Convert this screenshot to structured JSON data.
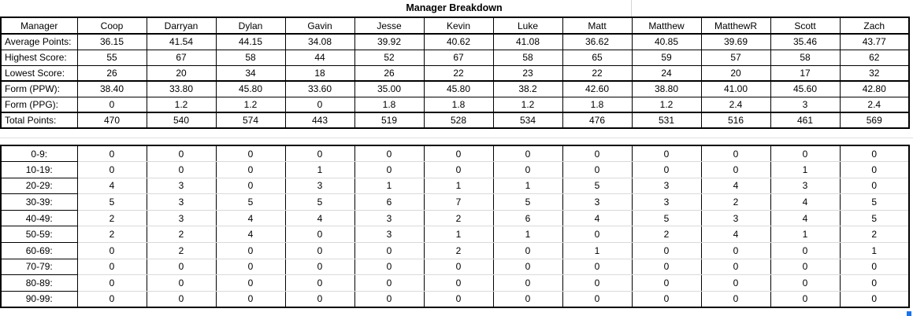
{
  "title": "Manager Breakdown",
  "managers": [
    "Coop",
    "Darryan",
    "Dylan",
    "Gavin",
    "Jesse",
    "Kevin",
    "Luke",
    "Matt",
    "Matthew",
    "MatthewR",
    "Scott",
    "Zach"
  ],
  "summary_table": {
    "header_label": "Manager",
    "rows": [
      {
        "label": "Average Points:",
        "values": [
          "36.15",
          "41.54",
          "44.15",
          "34.08",
          "39.92",
          "40.62",
          "41.08",
          "36.62",
          "40.85",
          "39.69",
          "35.46",
          "43.77"
        ]
      },
      {
        "label": "Highest Score:",
        "values": [
          "55",
          "67",
          "58",
          "44",
          "52",
          "67",
          "58",
          "65",
          "59",
          "57",
          "58",
          "62"
        ]
      },
      {
        "label": "Lowest Score:",
        "values": [
          "26",
          "20",
          "34",
          "18",
          "26",
          "22",
          "23",
          "22",
          "24",
          "20",
          "17",
          "32"
        ]
      },
      {
        "label": "Form (PPW):",
        "values": [
          "38.40",
          "33.80",
          "45.80",
          "33.60",
          "35.00",
          "45.80",
          "38.2",
          "42.60",
          "38.80",
          "41.00",
          "45.60",
          "42.80"
        ]
      },
      {
        "label": "Form (PPG):",
        "values": [
          "0",
          "1.2",
          "1.2",
          "0",
          "1.8",
          "1.8",
          "1.2",
          "1.8",
          "1.2",
          "2.4",
          "3",
          "2.4"
        ]
      },
      {
        "label": "Total Points:",
        "values": [
          "470",
          "540",
          "574",
          "443",
          "519",
          "528",
          "534",
          "476",
          "531",
          "516",
          "461",
          "569"
        ]
      }
    ]
  },
  "distribution_table": {
    "rows": [
      {
        "label": "0-9:",
        "values": [
          "0",
          "0",
          "0",
          "0",
          "0",
          "0",
          "0",
          "0",
          "0",
          "0",
          "0",
          "0"
        ]
      },
      {
        "label": "10-19:",
        "values": [
          "0",
          "0",
          "0",
          "1",
          "0",
          "0",
          "0",
          "0",
          "0",
          "0",
          "1",
          "0"
        ]
      },
      {
        "label": "20-29:",
        "values": [
          "4",
          "3",
          "0",
          "3",
          "1",
          "1",
          "1",
          "5",
          "3",
          "4",
          "3",
          "0"
        ]
      },
      {
        "label": "30-39:",
        "values": [
          "5",
          "3",
          "5",
          "5",
          "6",
          "7",
          "5",
          "3",
          "3",
          "2",
          "4",
          "5"
        ]
      },
      {
        "label": "40-49:",
        "values": [
          "2",
          "3",
          "4",
          "4",
          "3",
          "2",
          "6",
          "4",
          "5",
          "3",
          "4",
          "5"
        ]
      },
      {
        "label": "50-59:",
        "values": [
          "2",
          "2",
          "4",
          "0",
          "3",
          "1",
          "1",
          "0",
          "2",
          "4",
          "1",
          "2"
        ]
      },
      {
        "label": "60-69:",
        "values": [
          "0",
          "2",
          "0",
          "0",
          "0",
          "2",
          "0",
          "1",
          "0",
          "0",
          "0",
          "1"
        ]
      },
      {
        "label": "70-79:",
        "values": [
          "0",
          "0",
          "0",
          "0",
          "0",
          "0",
          "0",
          "0",
          "0",
          "0",
          "0",
          "0"
        ]
      },
      {
        "label": "80-89:",
        "values": [
          "0",
          "0",
          "0",
          "0",
          "0",
          "0",
          "0",
          "0",
          "0",
          "0",
          "0",
          "0"
        ]
      },
      {
        "label": "90-99:",
        "values": [
          "0",
          "0",
          "0",
          "0",
          "0",
          "0",
          "0",
          "0",
          "0",
          "0",
          "0",
          "0"
        ]
      }
    ]
  },
  "colors": {
    "table_border": "#000000",
    "gridline": "#d4d4d4",
    "row_gridline": "#d9d9d9",
    "selection_handle": "#1a73e8"
  }
}
